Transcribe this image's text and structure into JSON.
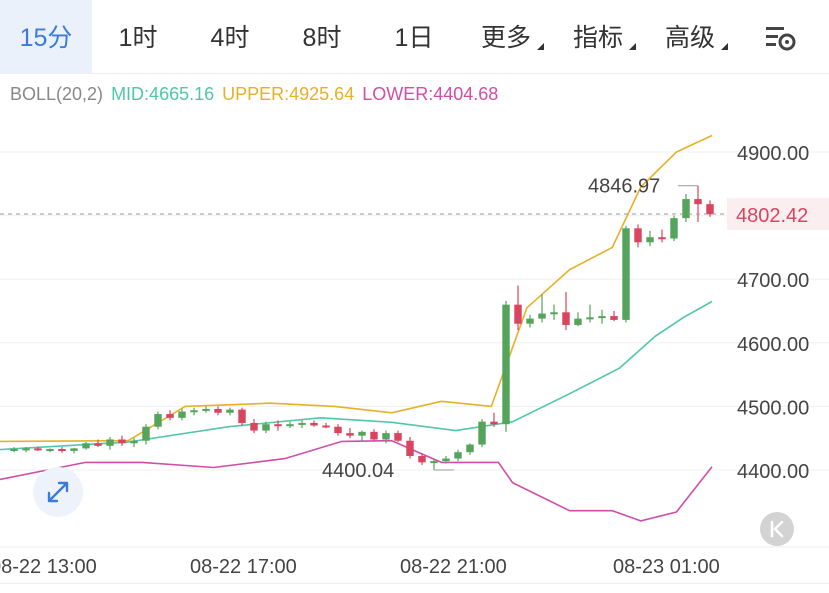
{
  "tabs": [
    {
      "label": "15分",
      "active": true
    },
    {
      "label": "1时",
      "active": false
    },
    {
      "label": "4时",
      "active": false
    },
    {
      "label": "8时",
      "active": false
    },
    {
      "label": "1日",
      "active": false
    },
    {
      "label": "更多",
      "active": false,
      "dropdown": true
    },
    {
      "label": "指标",
      "active": false,
      "dropdown": true
    },
    {
      "label": "高级",
      "active": false,
      "dropdown": true
    }
  ],
  "legend": {
    "name": "BOLL(20,2)",
    "mid": "MID:4665.16",
    "upper": "UPPER:4925.64",
    "lower": "LOWER:4404.68"
  },
  "colors": {
    "up": "#56a45c",
    "down": "#d9455f",
    "mid": "#4fc7a8",
    "upper": "#e6b128",
    "lower": "#d04ea8",
    "accent": "#3d7bd9",
    "price_label": "#d9455f"
  },
  "icons": {
    "settings": "settings-icon",
    "expand": "expand-icon",
    "back_to_latest": "back-to-latest-icon"
  },
  "chart_data": {
    "type": "candlestick",
    "y_axis": {
      "min": 4330,
      "max": 4960,
      "ticks": [
        "4900.00",
        "4800.00",
        "4700.00",
        "4600.00",
        "4500.00",
        "4400.00"
      ]
    },
    "x_ticks": [
      "08-22 13:00",
      "08-22 17:00",
      "08-22 21:00",
      "08-23 01:00"
    ],
    "current_price": "4802.42",
    "high_label": "4846.97",
    "low_label": "4400.04",
    "candles": [
      [
        4433,
        4436,
        4428,
        4433
      ],
      [
        4433,
        4436,
        4428,
        4434
      ],
      [
        4434,
        4437,
        4430,
        4431
      ],
      [
        4431,
        4434,
        4428,
        4433
      ],
      [
        4433,
        4436,
        4427,
        4430
      ],
      [
        4430,
        4435,
        4426,
        4434
      ],
      [
        4434,
        4444,
        4432,
        4442
      ],
      [
        4442,
        4448,
        4436,
        4438
      ],
      [
        4438,
        4452,
        4432,
        4448
      ],
      [
        4448,
        4454,
        4438,
        4442
      ],
      [
        4442,
        4450,
        4436,
        4446
      ],
      [
        4446,
        4472,
        4440,
        4468
      ],
      [
        4468,
        4492,
        4464,
        4488
      ],
      [
        4488,
        4494,
        4478,
        4482
      ],
      [
        4482,
        4496,
        4478,
        4492
      ],
      [
        4492,
        4498,
        4486,
        4494
      ],
      [
        4494,
        4500,
        4490,
        4496
      ],
      [
        4496,
        4500,
        4486,
        4490
      ],
      [
        4490,
        4498,
        4486,
        4495
      ],
      [
        4495,
        4498,
        4470,
        4474
      ],
      [
        4474,
        4480,
        4458,
        4462
      ],
      [
        4462,
        4476,
        4458,
        4472
      ],
      [
        4472,
        4478,
        4462,
        4470
      ],
      [
        4470,
        4476,
        4466,
        4472
      ],
      [
        4472,
        4478,
        4466,
        4474
      ],
      [
        4474,
        4478,
        4468,
        4470
      ],
      [
        4470,
        4474,
        4466,
        4468
      ],
      [
        4468,
        4472,
        4454,
        4458
      ],
      [
        4458,
        4466,
        4450,
        4454
      ],
      [
        4454,
        4462,
        4446,
        4460
      ],
      [
        4460,
        4464,
        4446,
        4448
      ],
      [
        4448,
        4462,
        4442,
        4458
      ],
      [
        4458,
        4462,
        4444,
        4446
      ],
      [
        4446,
        4452,
        4418,
        4422
      ],
      [
        4422,
        4426,
        4408,
        4412
      ],
      [
        4412,
        4418,
        4400,
        4414
      ],
      [
        4414,
        4422,
        4410,
        4418
      ],
      [
        4418,
        4432,
        4414,
        4428
      ],
      [
        4428,
        4442,
        4424,
        4440
      ],
      [
        4440,
        4480,
        4436,
        4476
      ],
      [
        4476,
        4490,
        4468,
        4472
      ],
      [
        4472,
        4666,
        4460,
        4660
      ],
      [
        4660,
        4690,
        4620,
        4630
      ],
      [
        4630,
        4644,
        4624,
        4638
      ],
      [
        4638,
        4676,
        4632,
        4646
      ],
      [
        4646,
        4660,
        4636,
        4648
      ],
      [
        4648,
        4680,
        4620,
        4628
      ],
      [
        4628,
        4648,
        4626,
        4638
      ],
      [
        4638,
        4660,
        4632,
        4640
      ],
      [
        4640,
        4652,
        4630,
        4642
      ],
      [
        4642,
        4650,
        4634,
        4636
      ],
      [
        4636,
        4784,
        4632,
        4780
      ],
      [
        4780,
        4786,
        4750,
        4758
      ],
      [
        4758,
        4776,
        4752,
        4766
      ],
      [
        4766,
        4778,
        4758,
        4764
      ],
      [
        4764,
        4800,
        4760,
        4796
      ],
      [
        4796,
        4834,
        4790,
        4826
      ],
      [
        4826,
        4847,
        4790,
        4818
      ],
      [
        4818,
        4824,
        4798,
        4802
      ]
    ],
    "bands": {
      "mid": [
        [
          0,
          4432
        ],
        [
          0.18,
          4444
        ],
        [
          0.32,
          4468
        ],
        [
          0.45,
          4482
        ],
        [
          0.55,
          4475
        ],
        [
          0.64,
          4462
        ],
        [
          0.72,
          4476
        ],
        [
          0.8,
          4520
        ],
        [
          0.87,
          4560
        ],
        [
          0.92,
          4610
        ],
        [
          0.96,
          4640
        ],
        [
          1,
          4665
        ]
      ],
      "upper": [
        [
          0,
          4445
        ],
        [
          0.18,
          4446
        ],
        [
          0.26,
          4500
        ],
        [
          0.38,
          4505
        ],
        [
          0.47,
          4500
        ],
        [
          0.55,
          4490
        ],
        [
          0.62,
          4508
        ],
        [
          0.69,
          4500
        ],
        [
          0.74,
          4655
        ],
        [
          0.8,
          4715
        ],
        [
          0.86,
          4750
        ],
        [
          0.9,
          4845
        ],
        [
          0.95,
          4900
        ],
        [
          1,
          4926
        ]
      ],
      "lower": [
        [
          0,
          4385
        ],
        [
          0.12,
          4412
        ],
        [
          0.2,
          4412
        ],
        [
          0.3,
          4404
        ],
        [
          0.4,
          4418
        ],
        [
          0.48,
          4445
        ],
        [
          0.55,
          4446
        ],
        [
          0.62,
          4412
        ],
        [
          0.7,
          4412
        ],
        [
          0.72,
          4380
        ],
        [
          0.8,
          4336
        ],
        [
          0.86,
          4336
        ],
        [
          0.9,
          4320
        ],
        [
          0.95,
          4334
        ],
        [
          1,
          4405
        ]
      ]
    }
  }
}
